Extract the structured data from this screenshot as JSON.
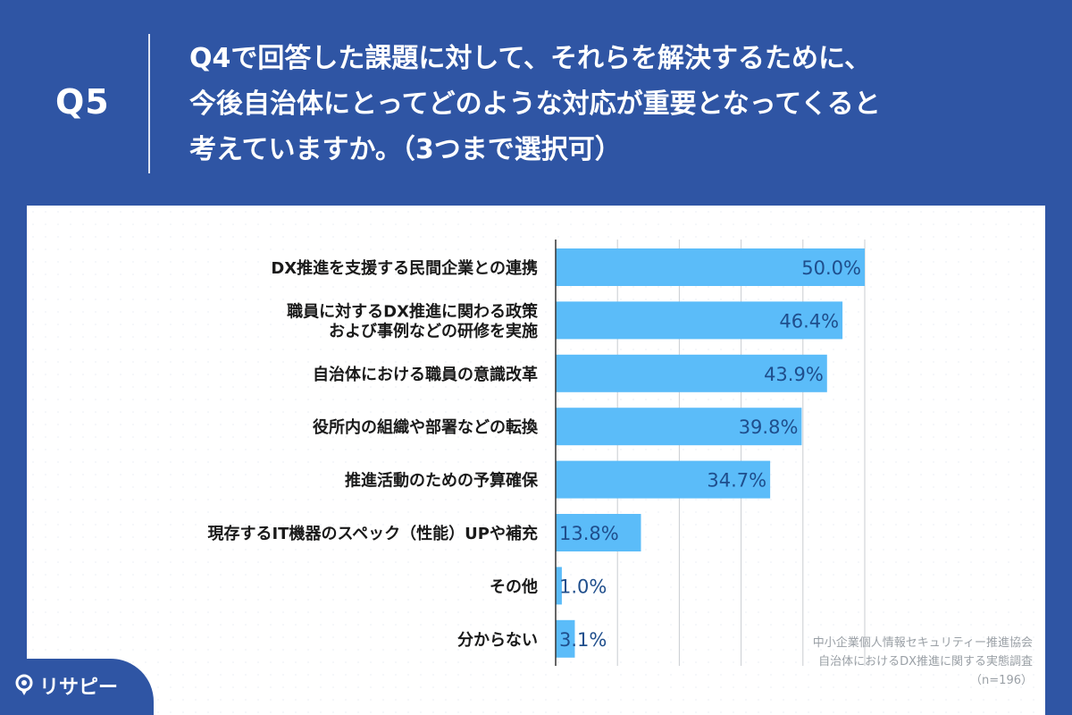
{
  "question": {
    "label": "Q5",
    "lines": [
      "Q4で回答した課題に対して、それらを解決するために、",
      "今後自治体にとってどのような対応が重要となってくると",
      "考えていますか。（3つまで選択可）"
    ]
  },
  "source": {
    "lines": [
      "中小企業個人情報セキュリティー推進協会",
      "自治体におけるDX推進に関する実態調査",
      "（n=196）"
    ]
  },
  "brand": {
    "name": "リサピー",
    "icon": "pin-icon"
  },
  "colors": {
    "header_bg": "#2f55a4",
    "bar": "#5bbcf9",
    "value_text": "#1f4e8c",
    "grid": "#c9ccd1"
  },
  "chart_data": {
    "type": "bar",
    "orientation": "horizontal",
    "categories": [
      [
        "DX推進を支援する民間企業との連携"
      ],
      [
        "職員に対するDX推進に関わる政策",
        "および事例などの研修を実施"
      ],
      [
        "自治体における職員の意識改革"
      ],
      [
        "役所内の組織や部署などの転換"
      ],
      [
        "推進活動のための予算確保"
      ],
      [
        "現存するIT機器のスペック（性能）UPや補充"
      ],
      [
        "その他"
      ],
      [
        "分からない"
      ]
    ],
    "values": [
      50.0,
      46.4,
      43.9,
      39.8,
      34.7,
      13.8,
      1.0,
      3.1
    ],
    "value_labels": [
      "50.0%",
      "46.4%",
      "43.9%",
      "39.8%",
      "34.7%",
      "13.8%",
      "1.0%",
      "3.1%"
    ],
    "xlim": [
      0,
      50
    ],
    "grid": true
  }
}
